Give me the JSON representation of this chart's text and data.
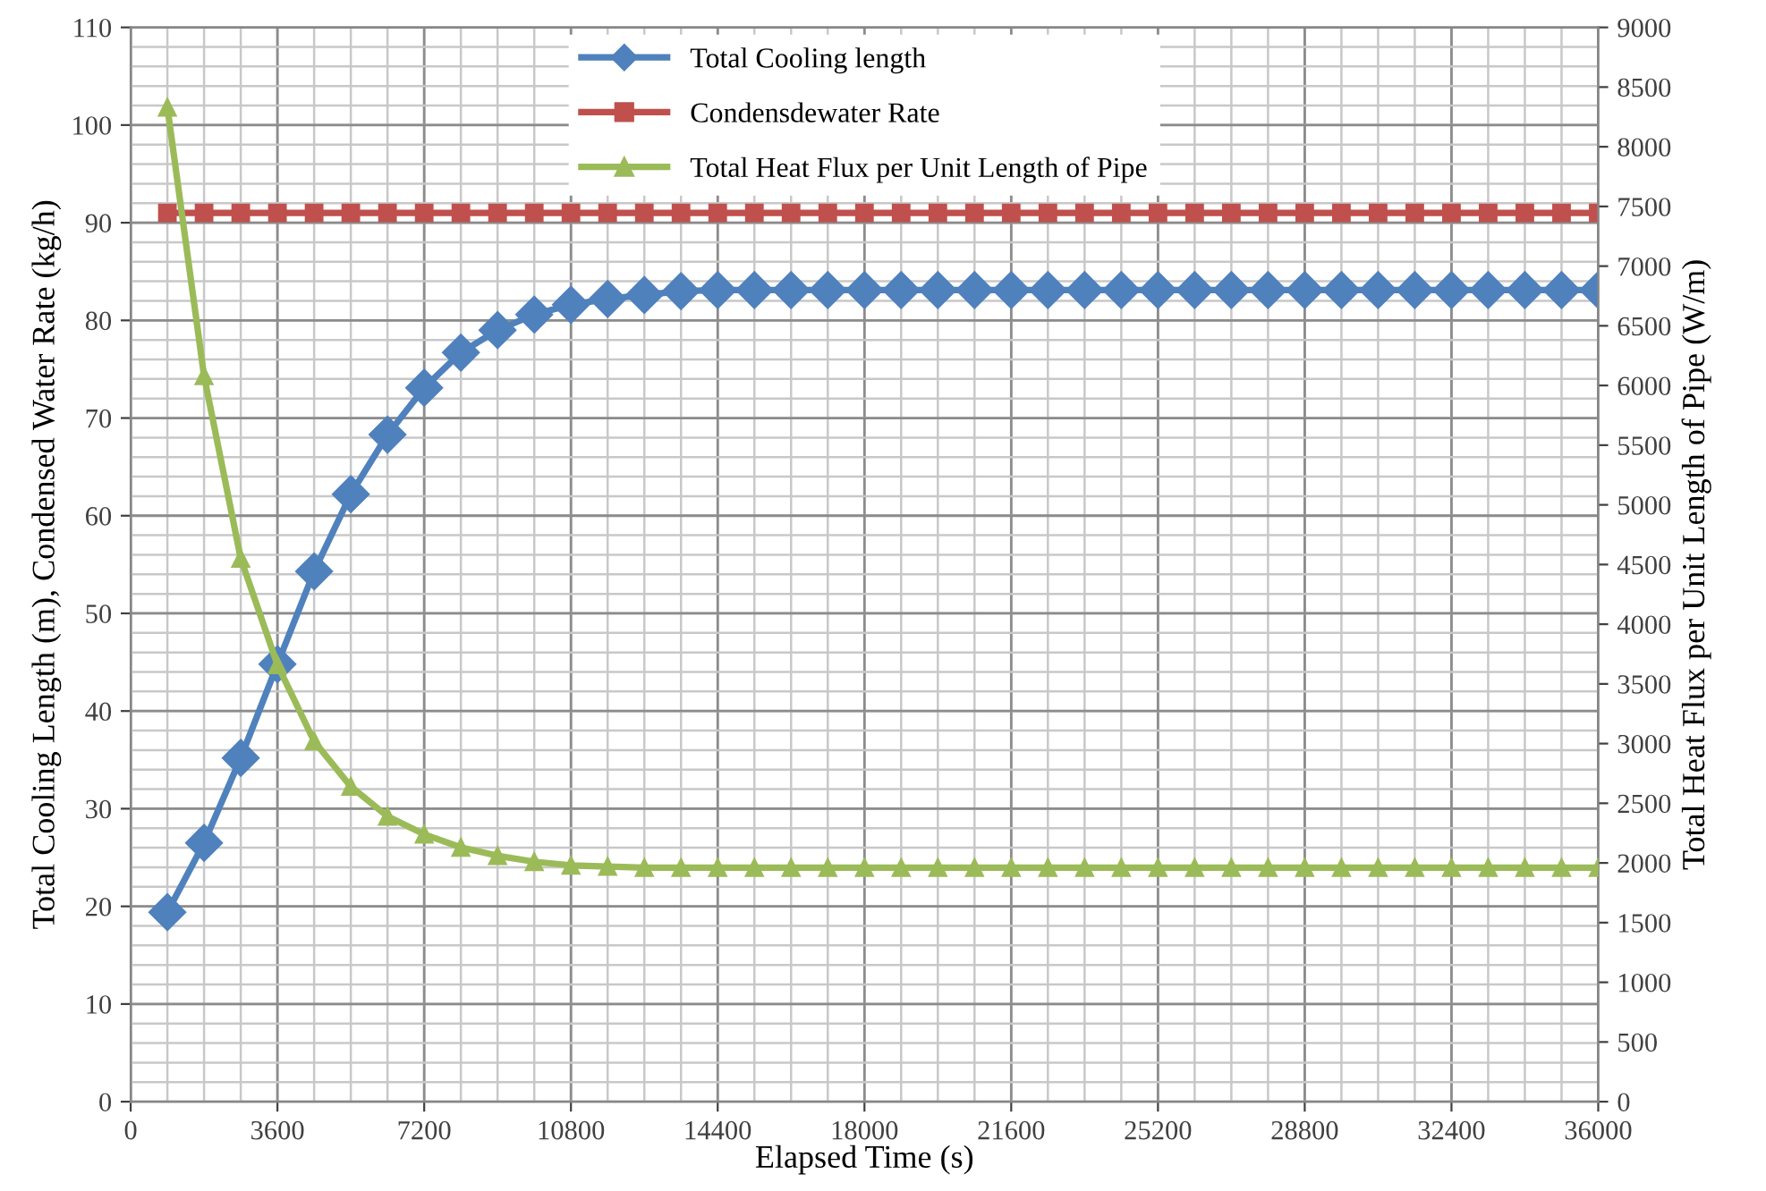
{
  "chart_data": {
    "type": "line",
    "xlabel": "Elapsed Time (s)",
    "ylabel": "Total Cooling Length (m), Condensed Water Rate (kg/h)",
    "y2label": "Total Heat Flux per Unit Length of Pipe (W/m)",
    "x": [
      900,
      1800,
      2700,
      3600,
      4500,
      5400,
      6300,
      7200,
      8100,
      9000,
      9900,
      10800,
      11700,
      12600,
      13500,
      14400,
      15300,
      16200,
      17100,
      18000,
      18900,
      19800,
      20700,
      21600,
      22500,
      23400,
      24300,
      25200,
      26100,
      27000,
      27900,
      28800,
      29700,
      30600,
      31500,
      32400,
      33300,
      34200,
      35100,
      36000
    ],
    "series": [
      {
        "name": "Total Cooling length",
        "color": "#4f81bd",
        "marker": "diamond",
        "values": [
          19.4,
          26.5,
          35.2,
          44.8,
          54.3,
          62.2,
          68.3,
          73.1,
          76.7,
          79.0,
          80.6,
          81.6,
          82.2,
          82.6,
          83.0,
          83.1,
          83.1,
          83.1,
          83.1,
          83.1,
          83.1,
          83.1,
          83.1,
          83.1,
          83.1,
          83.1,
          83.1,
          83.1,
          83.1,
          83.1,
          83.1,
          83.1,
          83.1,
          83.1,
          83.1,
          83.1,
          83.1,
          83.1,
          83.1,
          83.1
        ]
      },
      {
        "name": "Condensdewater Rate",
        "color": "#c0504d",
        "marker": "square",
        "values": [
          91,
          91,
          91,
          91,
          91,
          91,
          91,
          91,
          91,
          91,
          91,
          91,
          91,
          91,
          91,
          91,
          91,
          91,
          91,
          91,
          91,
          91,
          91,
          91,
          91,
          91,
          91,
          91,
          91,
          91,
          91,
          91,
          91,
          91,
          91,
          91,
          91,
          91,
          91,
          91
        ]
      },
      {
        "name": "Total Heat Flux per Unit Length of Pipe",
        "color": "#9bbb59",
        "marker": "triangle",
        "axis": "y2",
        "values": [
          8330,
          6080,
          4550,
          3660,
          3020,
          2640,
          2390,
          2240,
          2130,
          2060,
          2010,
          1980,
          1970,
          1960,
          1960,
          1960,
          1960,
          1960,
          1960,
          1960,
          1960,
          1960,
          1960,
          1960,
          1960,
          1960,
          1960,
          1960,
          1960,
          1960,
          1960,
          1960,
          1960,
          1960,
          1960,
          1960,
          1960,
          1960,
          1960,
          1960
        ]
      }
    ],
    "xlim": [
      0,
      36000
    ],
    "xticks": [
      0,
      3600,
      7200,
      10800,
      14400,
      18000,
      21600,
      25200,
      28800,
      32400,
      36000
    ],
    "ylim": [
      0,
      110
    ],
    "yticks": [
      0,
      10,
      20,
      30,
      40,
      50,
      60,
      70,
      80,
      90,
      100,
      110
    ],
    "y2lim": [
      0,
      9000
    ],
    "y2ticks": [
      0,
      500,
      1000,
      1500,
      2000,
      2500,
      3000,
      3500,
      4000,
      4500,
      5000,
      5500,
      6000,
      6500,
      7000,
      7500,
      8000,
      8500,
      9000
    ],
    "grid": true,
    "legend": "top",
    "line_style": "solid"
  }
}
